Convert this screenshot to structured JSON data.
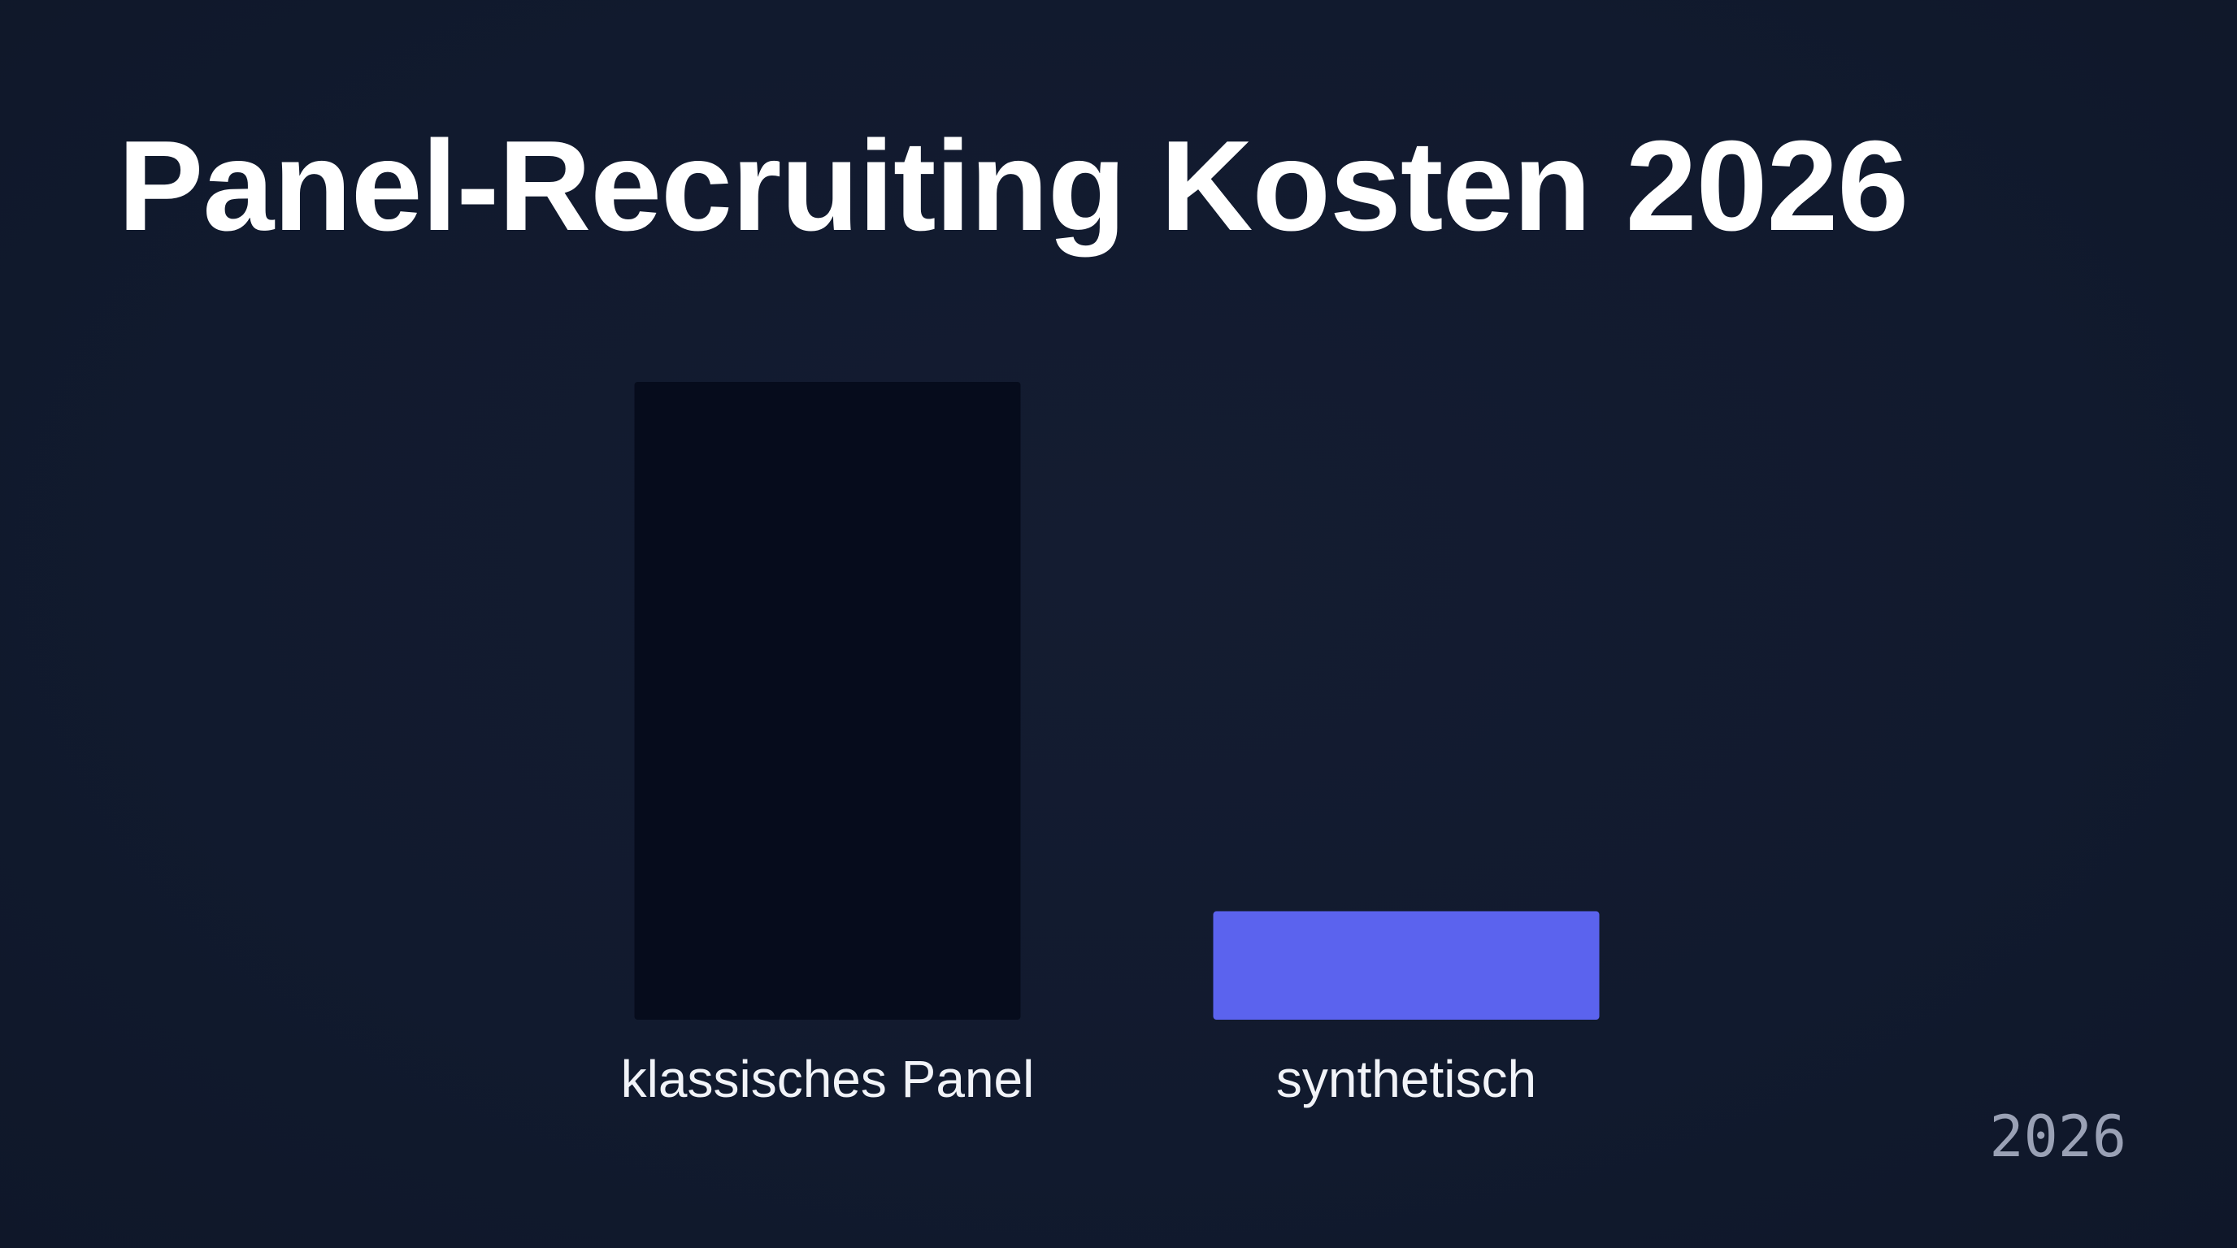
{
  "chart_data": {
    "type": "bar",
    "title": "Panel-Recruiting Kosten 2026",
    "categories": [
      "klassisches Panel",
      "synthetisch"
    ],
    "values": [
      100,
      17
    ],
    "colors": [
      "#060c1c",
      "#5b63ee"
    ],
    "xlabel": "",
    "ylabel": "",
    "ylim": [
      0,
      100
    ],
    "grid": false,
    "axes_visible": false
  },
  "footer": {
    "year": "2026"
  }
}
